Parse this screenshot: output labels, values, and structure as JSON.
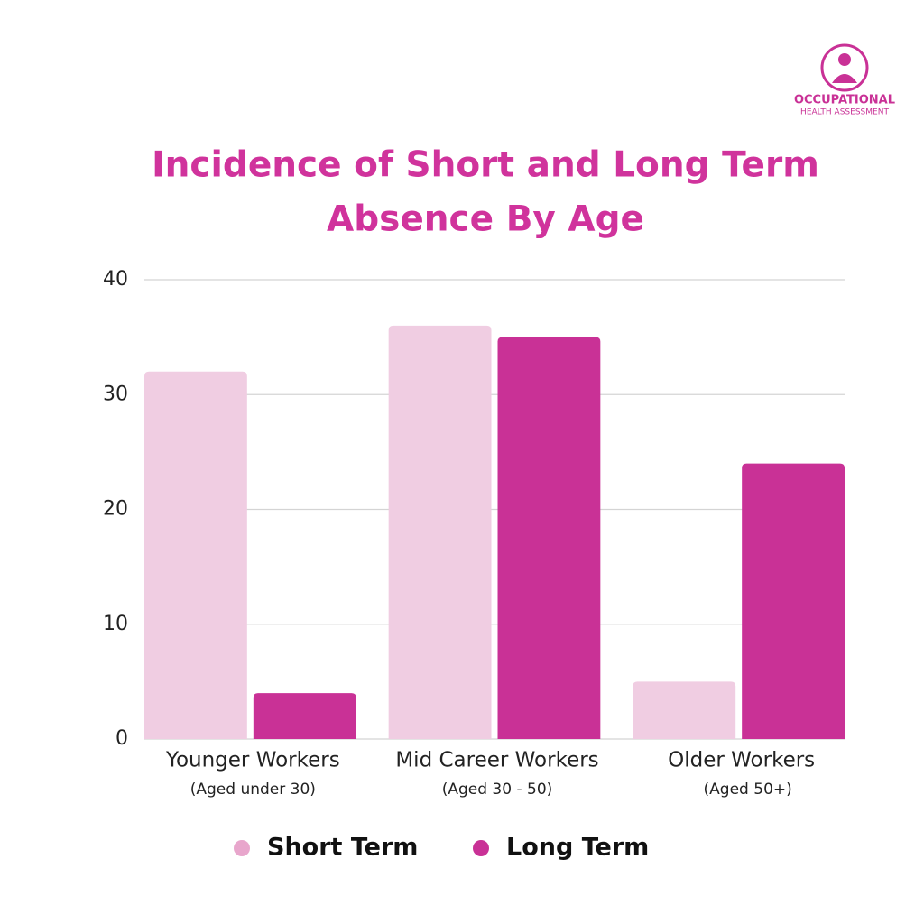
{
  "logo": {
    "line1": "OCCUPATIONAL",
    "line2": "HEALTH ASSESSMENT"
  },
  "chart_data": {
    "type": "bar",
    "title": [
      "Incidence of Short and Long Term",
      "Absence By Age"
    ],
    "categories": [
      "Younger Workers",
      "Mid Career Workers",
      "Older Workers"
    ],
    "category_subtitles": [
      "(Aged under 30)",
      "(Aged 30 - 50)",
      "(Aged 50+)"
    ],
    "series": [
      {
        "name": "Short Term",
        "color": "#f0cde2",
        "legend_color": "#e8a6cc",
        "values": [
          32,
          36,
          5
        ]
      },
      {
        "name": "Long Term",
        "color": "#c93196",
        "legend_color": "#c93196",
        "values": [
          4,
          35,
          24
        ]
      }
    ],
    "ylim": [
      0,
      40
    ],
    "yticks": [
      0,
      10,
      20,
      30,
      40
    ],
    "grid": true,
    "legend": "bottom"
  }
}
